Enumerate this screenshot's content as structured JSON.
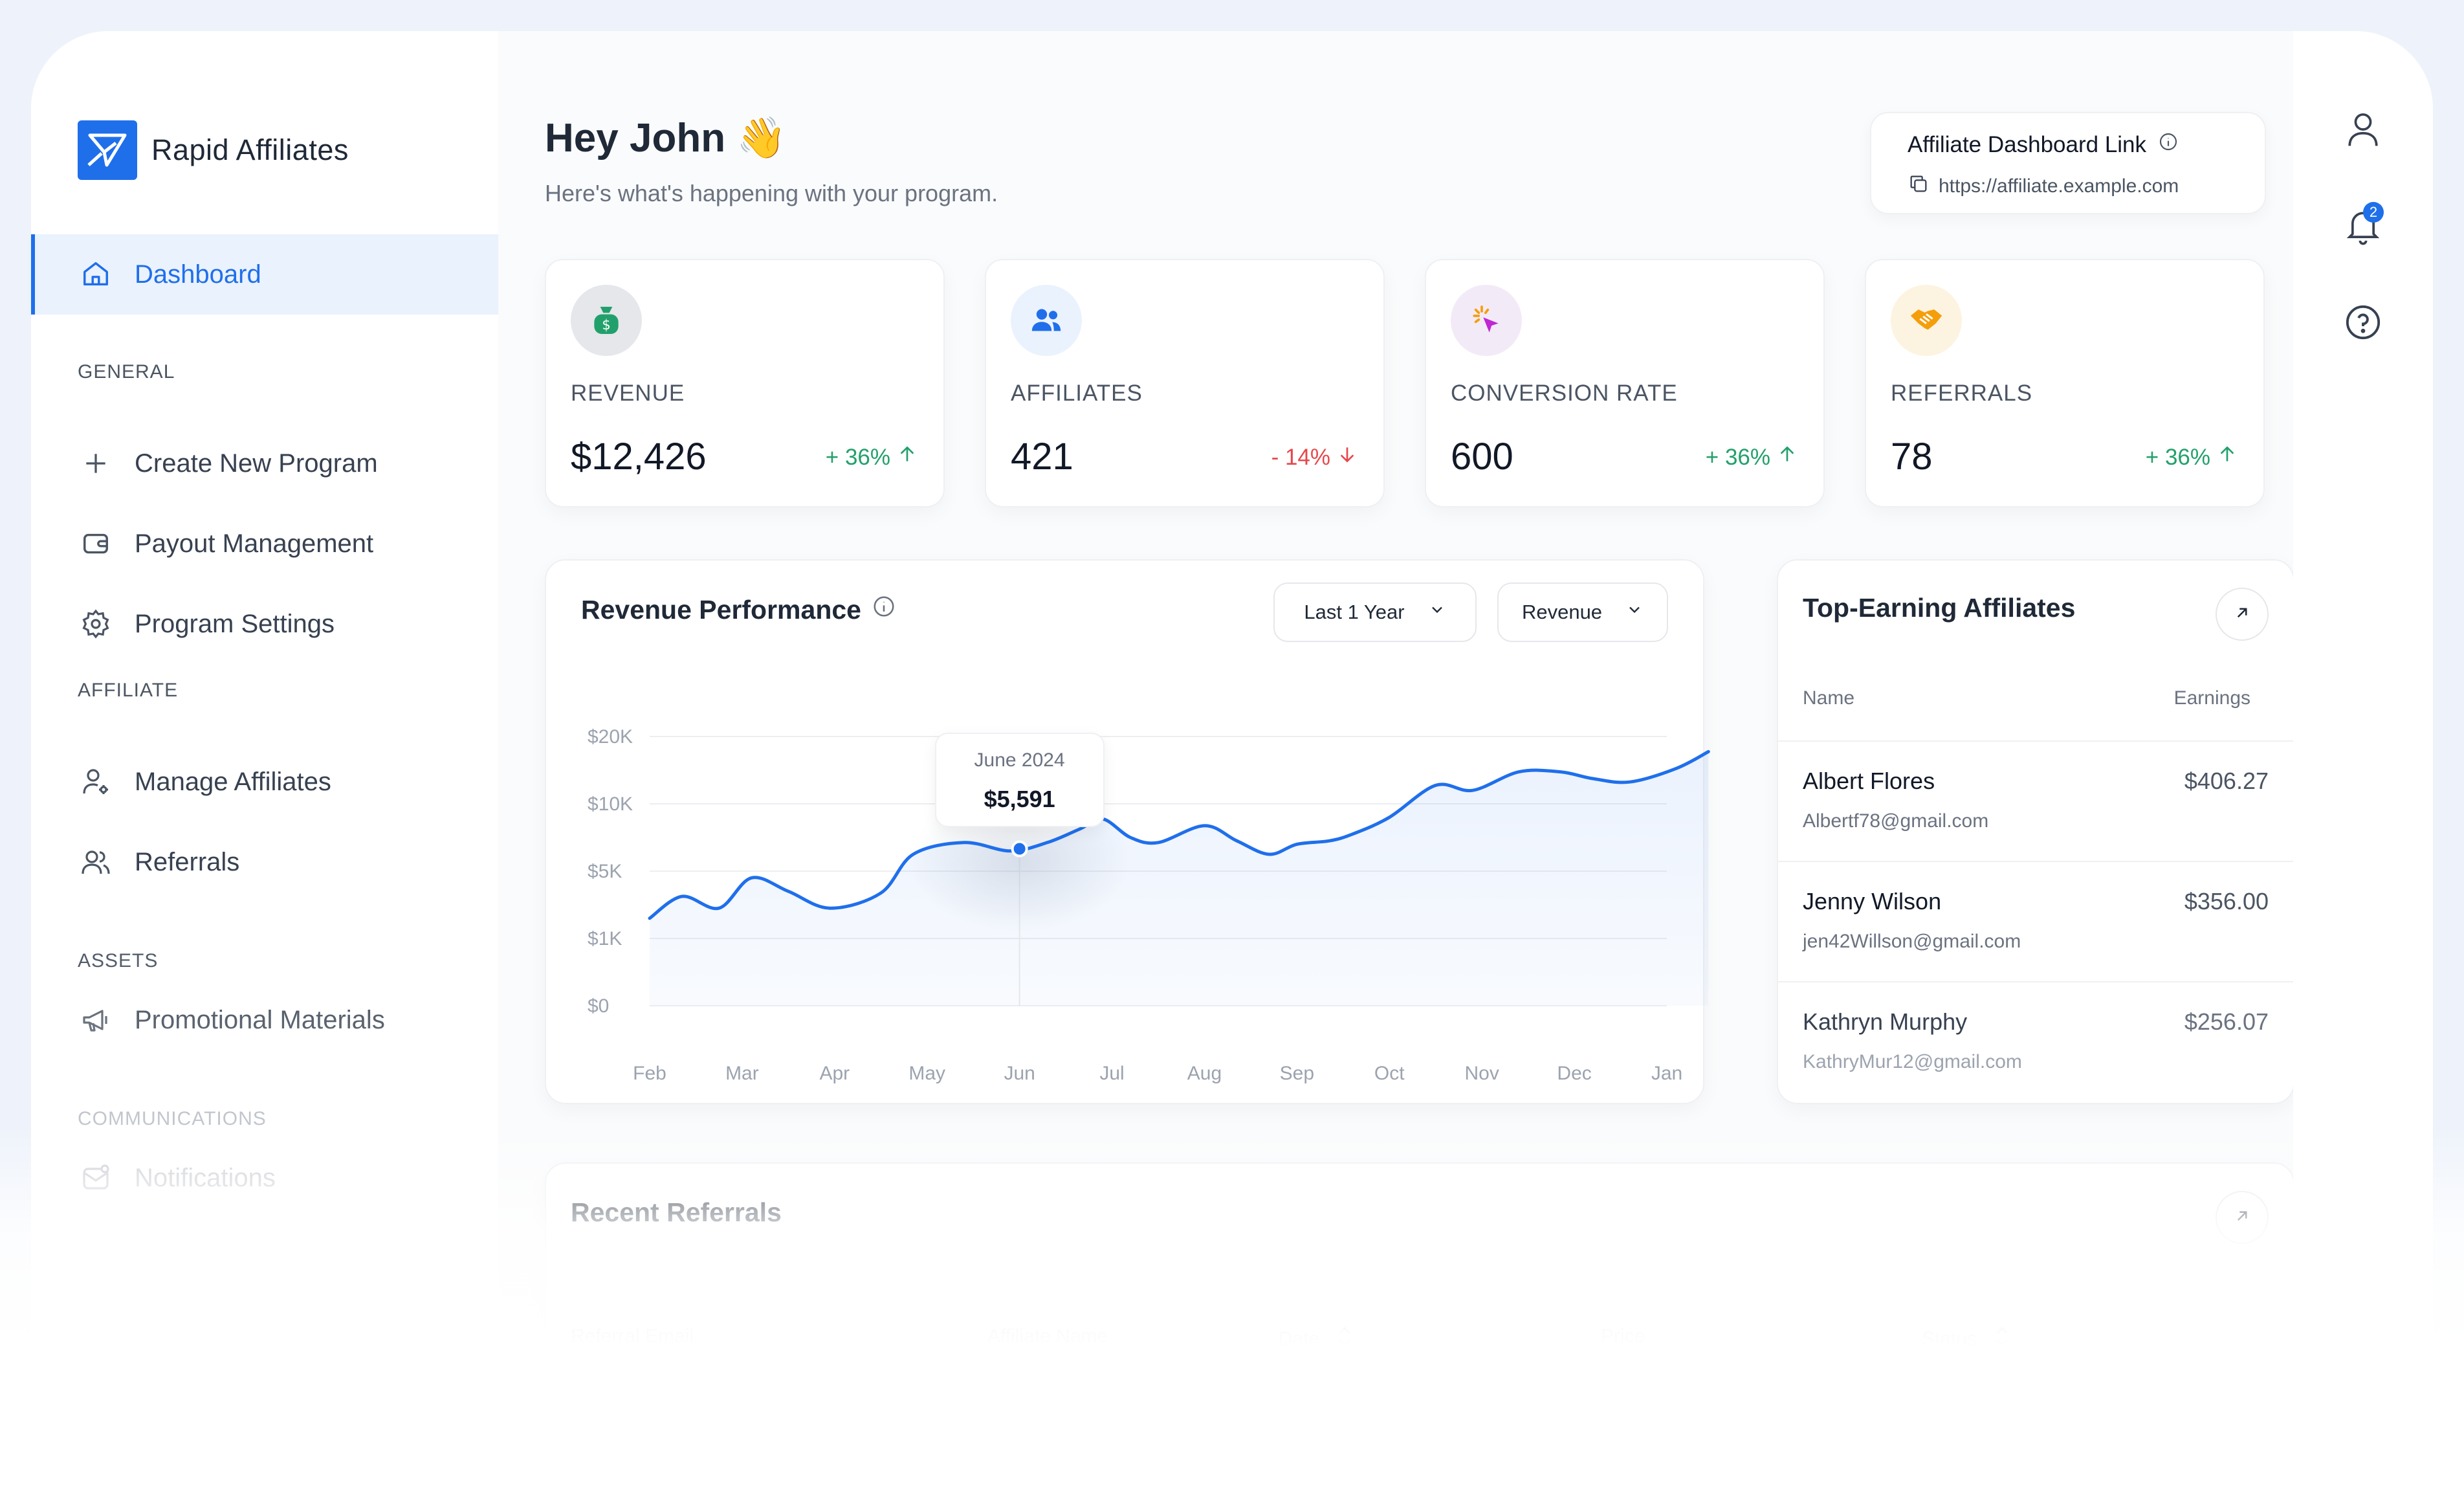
{
  "brand": {
    "name": "Rapid Affiliates",
    "logo_color": "#1f6feb"
  },
  "sidebar": {
    "active_item": {
      "label": "Dashboard",
      "icon": "home-icon"
    },
    "sections": [
      {
        "title": "GENERAL",
        "items": [
          {
            "label": "Create New Program",
            "icon": "plus-icon"
          },
          {
            "label": "Payout Management",
            "icon": "wallet-icon"
          },
          {
            "label": "Program Settings",
            "icon": "gear-icon"
          }
        ]
      },
      {
        "title": "AFFILIATE",
        "items": [
          {
            "label": "Manage Affiliates",
            "icon": "user-settings-icon"
          },
          {
            "label": "Referrals",
            "icon": "users-icon"
          }
        ]
      },
      {
        "title": "ASSETS",
        "items": [
          {
            "label": "Promotional Materials",
            "icon": "megaphone-icon"
          }
        ]
      },
      {
        "title": "COMMUNICATIONS",
        "items": [
          {
            "label": "Notifications",
            "icon": "mail-icon"
          }
        ]
      }
    ]
  },
  "header": {
    "greeting": "Hey John",
    "greeting_emoji": "👋",
    "subtitle": "Here's what's happening with your program."
  },
  "dashboard_link": {
    "title": "Affiliate Dashboard Link",
    "url": "https://affiliate.example.com"
  },
  "stats": [
    {
      "label": "REVENUE",
      "value": "$12,426",
      "change": "+ 36%",
      "direction": "up",
      "icon": "money-bag-icon",
      "icon_bg": "#e5e7eb",
      "icon_color": "#22a06b"
    },
    {
      "label": "AFFILIATES",
      "value": "421",
      "change": "- 14%",
      "direction": "down",
      "icon": "users-icon",
      "icon_bg": "#eaf2fd",
      "icon_color": "#1f6feb"
    },
    {
      "label": "CONVERSION RATE",
      "value": "600",
      "change": "+ 36%",
      "direction": "up",
      "icon": "cursor-click-icon",
      "icon_bg": "#f3eaf7",
      "icon_color": "#c026d3"
    },
    {
      "label": "REFERRALS",
      "value": "78",
      "change": "+ 36%",
      "direction": "up",
      "icon": "handshake-icon",
      "icon_bg": "#fdf3e1",
      "icon_color": "#f59e0b"
    }
  ],
  "colors": {
    "up": "#22a06b",
    "down": "#e5484d",
    "accent": "#1f6feb"
  },
  "revenue_panel": {
    "title": "Revenue Performance",
    "range_select": "Last 1 Year",
    "metric_select": "Revenue",
    "tooltip": {
      "label": "June 2024",
      "value": "$5,591"
    }
  },
  "chart_data": {
    "type": "area",
    "title": "Revenue Performance",
    "xlabel": "",
    "ylabel": "",
    "y_ticks": [
      "$0",
      "$1K",
      "$5K",
      "$10K",
      "$20K"
    ],
    "x_ticks": [
      "Feb",
      "Mar",
      "Apr",
      "May",
      "Jun",
      "Jul",
      "Aug",
      "Sep",
      "Oct",
      "Nov",
      "Dec",
      "Jan"
    ],
    "x": [
      0,
      0.35,
      0.75,
      1.1,
      1.5,
      1.95,
      2.5,
      2.85,
      3.4,
      3.9,
      4.3,
      4.65,
      4.9,
      5.2,
      5.5,
      6.0,
      6.35,
      6.7,
      7.0,
      7.35,
      7.6,
      8.0,
      8.5,
      8.9,
      9.4,
      9.85,
      10.2,
      10.6,
      11.1,
      11.45
    ],
    "y": [
      2.6,
      3.25,
      2.9,
      3.8,
      3.4,
      2.9,
      3.35,
      4.5,
      4.85,
      4.6,
      4.85,
      5.25,
      5.55,
      5.0,
      4.85,
      5.35,
      4.9,
      4.5,
      4.8,
      4.9,
      5.1,
      5.6,
      6.55,
      6.4,
      6.95,
      6.95,
      6.75,
      6.65,
      7.05,
      7.55
    ],
    "y_scale_note": "y values on index scale where 0=$0, 2=$1K, 4=$5K, 6=$10K, 8=$20K",
    "highlight": {
      "x_label": "Jun",
      "label": "June 2024",
      "value": "$5,591"
    },
    "line_color": "#1f6feb",
    "grid": true
  },
  "top_affiliates": {
    "title": "Top-Earning Affiliates",
    "columns": [
      "Name",
      "Earnings"
    ],
    "rows": [
      {
        "name": "Albert Flores",
        "email": "Albertf78@gmail.com",
        "earnings": "$406.27"
      },
      {
        "name": "Jenny Wilson",
        "email": "jen42Willson@gmail.com",
        "earnings": "$356.00"
      },
      {
        "name": "Kathryn Murphy",
        "email": "KathryMur12@gmail.com",
        "earnings": "$256.07"
      }
    ]
  },
  "recent_referrals": {
    "title": "Recent Referrals",
    "columns": [
      "Referral Email",
      "Affiliate Name",
      "Date",
      "Price",
      "Status"
    ]
  },
  "right_rail": {
    "icons": [
      "user-icon",
      "bell-icon",
      "help-icon"
    ],
    "notification_count": "2"
  }
}
